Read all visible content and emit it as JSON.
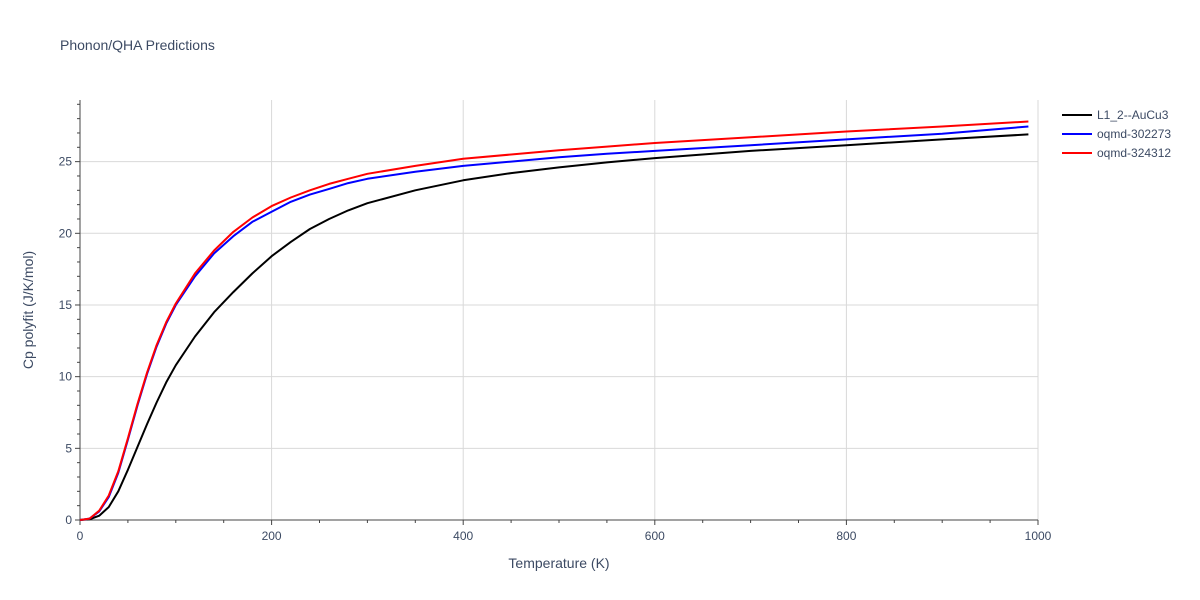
{
  "chart_data": {
    "type": "line",
    "title": "Phonon/QHA Predictions",
    "xlabel": "Temperature (K)",
    "ylabel": "Cp polyfit (J/K/mol)",
    "xlim": [
      0,
      1000
    ],
    "ylim": [
      0,
      29.3
    ],
    "xticks": [
      0,
      200,
      400,
      600,
      800,
      1000
    ],
    "yticks": [
      0,
      5,
      10,
      15,
      20,
      25
    ],
    "grid": true,
    "legend_position": "top-right",
    "series": [
      {
        "name": "L1_2--AuCu3",
        "color": "#000000",
        "x": [
          0,
          10,
          20,
          30,
          40,
          50,
          60,
          70,
          80,
          90,
          100,
          120,
          140,
          160,
          180,
          200,
          220,
          240,
          260,
          280,
          300,
          350,
          400,
          450,
          500,
          550,
          600,
          700,
          800,
          900,
          990
        ],
        "y": [
          0,
          0.05,
          0.3,
          0.9,
          2.0,
          3.5,
          5.1,
          6.7,
          8.2,
          9.6,
          10.8,
          12.8,
          14.5,
          15.9,
          17.2,
          18.4,
          19.4,
          20.3,
          21.0,
          21.6,
          22.1,
          23.0,
          23.7,
          24.2,
          24.6,
          24.95,
          25.25,
          25.75,
          26.15,
          26.55,
          26.9
        ]
      },
      {
        "name": "oqmd-302273",
        "color": "#0000ff",
        "x": [
          0,
          10,
          20,
          30,
          40,
          50,
          60,
          70,
          80,
          90,
          100,
          120,
          140,
          160,
          180,
          200,
          220,
          240,
          260,
          280,
          300,
          350,
          400,
          450,
          500,
          550,
          600,
          700,
          800,
          900,
          990
        ],
        "y": [
          0,
          0.1,
          0.6,
          1.6,
          3.3,
          5.6,
          8.0,
          10.2,
          12.1,
          13.7,
          15.0,
          17.0,
          18.6,
          19.8,
          20.8,
          21.5,
          22.2,
          22.7,
          23.1,
          23.5,
          23.8,
          24.3,
          24.7,
          25.0,
          25.3,
          25.55,
          25.75,
          26.15,
          26.55,
          26.95,
          27.45
        ]
      },
      {
        "name": "oqmd-324312",
        "color": "#ff0000",
        "x": [
          0,
          10,
          20,
          30,
          40,
          50,
          60,
          70,
          80,
          90,
          100,
          120,
          140,
          160,
          180,
          200,
          220,
          240,
          260,
          280,
          300,
          350,
          400,
          450,
          500,
          550,
          600,
          700,
          800,
          900,
          990
        ],
        "y": [
          0,
          0.1,
          0.65,
          1.7,
          3.4,
          5.7,
          8.1,
          10.3,
          12.2,
          13.8,
          15.1,
          17.2,
          18.8,
          20.1,
          21.1,
          21.9,
          22.5,
          23.0,
          23.45,
          23.8,
          24.15,
          24.7,
          25.2,
          25.5,
          25.8,
          26.05,
          26.3,
          26.7,
          27.1,
          27.45,
          27.8
        ]
      }
    ]
  }
}
